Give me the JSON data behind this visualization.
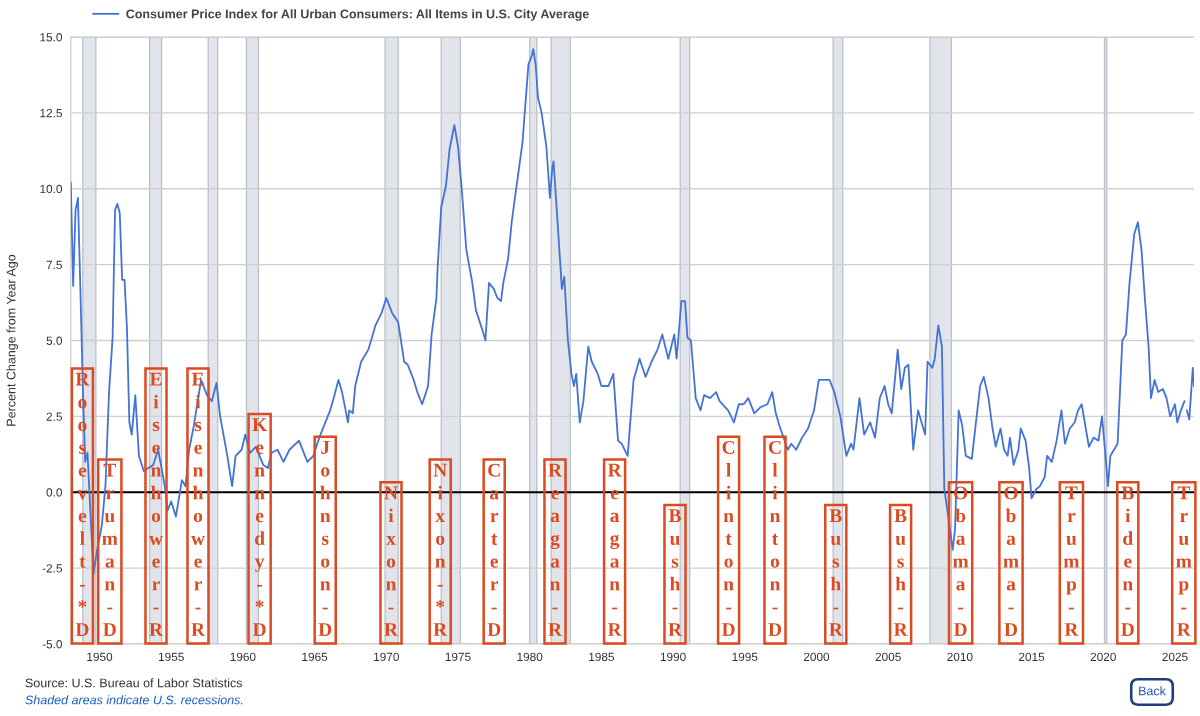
{
  "chart_data": {
    "type": "line",
    "ylabel": "Percent Change from Year Ago",
    "x": [
      "1948-01",
      "1948-03",
      "1948-05",
      "1948-07",
      "1948-09",
      "1948-11",
      "1949-01",
      "1949-03",
      "1949-08",
      "1949-11",
      "1950-03",
      "1950-06",
      "1950-09",
      "1950-12",
      "1951-02",
      "1951-04",
      "1951-06",
      "1951-08",
      "1951-10",
      "1951-12",
      "1952-02",
      "1952-04",
      "1952-07",
      "1952-10",
      "1953-02",
      "1953-06",
      "1953-10",
      "1954-02",
      "1954-05",
      "1954-08",
      "1954-10",
      "1955-01",
      "1955-05",
      "1955-10",
      "1956-01",
      "1956-04",
      "1956-08",
      "1957-02",
      "1957-07",
      "1957-11",
      "1958-03",
      "1958-06",
      "1958-12",
      "1959-04",
      "1959-07",
      "1959-12",
      "1960-03",
      "1960-07",
      "1960-12",
      "1961-03",
      "1961-06",
      "1961-10",
      "1962-01",
      "1962-06",
      "1962-11",
      "1963-04",
      "1963-12",
      "1964-07",
      "1964-12",
      "1965-05",
      "1966-02",
      "1966-05",
      "1966-09",
      "1966-12",
      "1967-05",
      "1967-06",
      "1967-09",
      "1967-11",
      "1968-04",
      "1968-10",
      "1969-01",
      "1969-04",
      "1969-09",
      "1970-01",
      "1970-06",
      "1970-11",
      "1971-04",
      "1971-07",
      "1971-12",
      "1972-03",
      "1972-07",
      "1972-12",
      "1973-03",
      "1973-07",
      "1973-08",
      "1973-11",
      "1974-03",
      "1974-06",
      "1974-10",
      "1975-01",
      "1975-04",
      "1975-08",
      "1976-01",
      "1976-04",
      "1976-09",
      "1976-12",
      "1977-03",
      "1977-07",
      "1977-10",
      "1978-01",
      "1978-03",
      "1978-07",
      "1978-10",
      "1979-01",
      "1979-07",
      "1979-12",
      "1980-03",
      "1980-04",
      "1980-06",
      "1980-08",
      "1980-11",
      "1981-03",
      "1981-06",
      "1981-08",
      "1981-09",
      "1982-01",
      "1982-04",
      "1982-06",
      "1982-09",
      "1982-12",
      "1983-02",
      "1983-04",
      "1983-07",
      "1983-10",
      "1984-02",
      "1984-05",
      "1984-10",
      "1985-01",
      "1985-07",
      "1985-11",
      "1986-03",
      "1986-06",
      "1986-11",
      "1987-04",
      "1987-09",
      "1988-02",
      "1988-07",
      "1988-12",
      "1989-04",
      "1989-09",
      "1990-02",
      "1990-04",
      "1990-08",
      "1990-11",
      "1991-01",
      "1991-04",
      "1991-08",
      "1991-12",
      "1992-03",
      "1992-08",
      "1993-01",
      "1993-04",
      "1993-11",
      "1994-04",
      "1994-08",
      "1994-12",
      "1995-04",
      "1995-09",
      "1996-02",
      "1996-08",
      "1996-12",
      "1997-03",
      "1997-06",
      "1998-01",
      "1998-04",
      "1998-08",
      "1999-01",
      "1999-06",
      "1999-11",
      "2000-03",
      "2000-06",
      "2000-12",
      "2001-04",
      "2001-09",
      "2002-02",
      "2002-06",
      "2002-08",
      "2003-01",
      "2003-05",
      "2003-10",
      "2004-02",
      "2004-06",
      "2004-10",
      "2005-01",
      "2005-04",
      "2005-09",
      "2005-12",
      "2006-03",
      "2006-06",
      "2006-10",
      "2007-02",
      "2007-05",
      "2007-08",
      "2007-10",
      "2008-02",
      "2008-04",
      "2008-07",
      "2008-10",
      "2008-12",
      "2009-03",
      "2009-07",
      "2009-09",
      "2009-12",
      "2010-03",
      "2010-06",
      "2010-11",
      "2011-06",
      "2011-09",
      "2012-01",
      "2012-04",
      "2012-07",
      "2012-11",
      "2013-02",
      "2013-05",
      "2013-07",
      "2013-10",
      "2014-02",
      "2014-04",
      "2014-08",
      "2014-11",
      "2015-01",
      "2015-05",
      "2015-08",
      "2015-12",
      "2016-02",
      "2016-06",
      "2016-10",
      "2017-02",
      "2017-05",
      "2017-09",
      "2018-01",
      "2018-04",
      "2018-07",
      "2018-10",
      "2019-01",
      "2019-05",
      "2019-09",
      "2019-12",
      "2020-02",
      "2020-05",
      "2020-07",
      "2020-10",
      "2021-01",
      "2021-05",
      "2021-08",
      "2021-11",
      "2022-03",
      "2022-06",
      "2022-09",
      "2022-12",
      "2023-03",
      "2023-05",
      "2023-08",
      "2023-11",
      "2024-03",
      "2024-06",
      "2024-09",
      "2025-01",
      "2025-03",
      "2025-06",
      "2025-09",
      "2025-10",
      "2025-11",
      "2026-01",
      "2026-04",
      "2026-05"
    ],
    "series": [
      {
        "name": "Consumer Price Index for All Urban Consumers: All Items in U.S. City Average",
        "color": "#4473d6",
        "values": [
          10.2,
          6.8,
          9.3,
          9.7,
          6.7,
          3.5,
          1.0,
          1.3,
          -2.7,
          -1.9,
          -1.1,
          0.2,
          3.3,
          5.1,
          9.3,
          9.5,
          9.2,
          7.0,
          7.0,
          5.4,
          2.3,
          1.9,
          3.2,
          1.2,
          0.7,
          0.8,
          0.9,
          1.4,
          0.8,
          0.1,
          -0.6,
          -0.3,
          -0.8,
          0.4,
          0.2,
          1.4,
          2.2,
          3.7,
          3.2,
          3.0,
          3.6,
          2.5,
          1.2,
          0.2,
          1.2,
          1.4,
          1.9,
          1.3,
          1.5,
          1.2,
          0.9,
          0.8,
          1.3,
          1.4,
          1.0,
          1.4,
          1.7,
          1.0,
          1.2,
          1.8,
          2.7,
          3.1,
          3.7,
          3.3,
          2.3,
          2.7,
          2.6,
          3.5,
          4.3,
          4.7,
          5.1,
          5.5,
          5.9,
          6.4,
          5.9,
          5.6,
          4.3,
          4.2,
          3.7,
          3.3,
          2.9,
          3.5,
          5.2,
          6.4,
          7.4,
          9.4,
          10.1,
          11.3,
          12.1,
          11.4,
          10.1,
          8.0,
          6.9,
          6.0,
          5.4,
          5.0,
          6.9,
          6.7,
          6.4,
          6.3,
          6.9,
          7.7,
          8.9,
          9.8,
          11.5,
          14.1,
          14.4,
          14.6,
          14.1,
          13.0,
          12.5,
          11.4,
          9.7,
          10.7,
          10.9,
          8.5,
          6.7,
          7.1,
          5.0,
          3.9,
          3.5,
          3.9,
          2.3,
          3.0,
          4.8,
          4.3,
          3.9,
          3.5,
          3.5,
          3.9,
          1.7,
          1.6,
          1.2,
          3.7,
          4.4,
          3.8,
          4.3,
          4.7,
          5.2,
          4.4,
          5.2,
          4.4,
          6.3,
          6.3,
          5.1,
          5.0,
          3.1,
          2.7,
          3.2,
          3.1,
          3.3,
          3.0,
          2.7,
          2.3,
          2.9,
          2.9,
          3.1,
          2.6,
          2.8,
          2.9,
          3.3,
          2.6,
          2.2,
          1.4,
          1.6,
          1.4,
          1.8,
          2.1,
          2.7,
          3.7,
          3.7,
          3.7,
          3.3,
          2.5,
          1.2,
          1.6,
          1.4,
          3.1,
          1.9,
          2.3,
          1.8,
          3.1,
          3.5,
          2.9,
          2.6,
          4.7,
          3.4,
          4.1,
          4.2,
          1.4,
          2.7,
          2.3,
          1.9,
          4.3,
          4.1,
          4.4,
          5.5,
          4.8,
          0.1,
          -0.7,
          -1.9,
          -1.2,
          2.7,
          2.2,
          1.2,
          1.1,
          3.5,
          3.8,
          3.1,
          2.2,
          1.5,
          2.1,
          1.4,
          1.2,
          1.8,
          0.9,
          1.4,
          2.1,
          1.7,
          0.8,
          -0.2,
          0.1,
          0.2,
          0.5,
          1.2,
          1.0,
          1.7,
          2.7,
          1.6,
          2.1,
          2.3,
          2.7,
          2.9,
          2.2,
          1.5,
          1.8,
          1.7,
          2.5,
          1.6,
          0.2,
          1.2,
          1.4,
          1.6,
          5.0,
          5.2,
          6.9,
          8.5,
          8.9,
          8.0,
          6.3,
          4.8,
          3.1,
          3.7,
          3.3,
          3.4,
          3.1,
          2.5,
          2.9,
          2.3,
          2.7,
          3.0,
          null,
          2.7,
          2.4,
          4.1,
          3.5
        ]
      }
    ],
    "xlim": [
      "1948-01",
      "2026-05"
    ],
    "ylim": [
      -5,
      15
    ],
    "xticks": [
      "1950",
      "1955",
      "1960",
      "1965",
      "1970",
      "1975",
      "1980",
      "1985",
      "1990",
      "1995",
      "2000",
      "2005",
      "2010",
      "2015",
      "2020",
      "2025"
    ],
    "yticks": [
      {
        "value": -5,
        "label": "-5.0"
      },
      {
        "value": -2.5,
        "label": "-2.5"
      },
      {
        "value": 0,
        "label": "0.0"
      },
      {
        "value": 2.5,
        "label": "2.5"
      },
      {
        "value": 5,
        "label": "5.0"
      },
      {
        "value": 7.5,
        "label": "7.5"
      },
      {
        "value": 10,
        "label": "10.0"
      },
      {
        "value": 12.5,
        "label": "12.5"
      },
      {
        "value": 15,
        "label": "15.0"
      }
    ],
    "grid": "y",
    "legend": "top left",
    "ref_lines": [
      {
        "axis": "y",
        "value": 0,
        "color": "#000000"
      }
    ],
    "bands": [
      {
        "axis": "x",
        "from": "1948-11",
        "to": "1949-10",
        "color": "#e1e4ea"
      },
      {
        "axis": "x",
        "from": "1953-07",
        "to": "1954-05",
        "color": "#e1e4ea"
      },
      {
        "axis": "x",
        "from": "1957-08",
        "to": "1958-04",
        "color": "#e1e4ea"
      },
      {
        "axis": "x",
        "from": "1960-04",
        "to": "1961-02",
        "color": "#e1e4ea"
      },
      {
        "axis": "x",
        "from": "1969-12",
        "to": "1970-11",
        "color": "#e1e4ea"
      },
      {
        "axis": "x",
        "from": "1973-11",
        "to": "1975-03",
        "color": "#e1e4ea"
      },
      {
        "axis": "x",
        "from": "1980-01",
        "to": "1980-07",
        "color": "#e1e4ea"
      },
      {
        "axis": "x",
        "from": "1981-07",
        "to": "1982-11",
        "color": "#e1e4ea"
      },
      {
        "axis": "x",
        "from": "1990-07",
        "to": "1991-03",
        "color": "#e1e4ea"
      },
      {
        "axis": "x",
        "from": "2001-03",
        "to": "2001-11",
        "color": "#e1e4ea"
      },
      {
        "axis": "x",
        "from": "2007-12",
        "to": "2009-06",
        "color": "#e1e4ea"
      },
      {
        "axis": "x",
        "from": "2020-02",
        "to": "2020-04",
        "color": "#e1e4ea"
      }
    ],
    "annotations": [
      "Roosevelt-*D",
      "Truman-D",
      "Eisenhower-R",
      "Eisenhower-R",
      "Kennedy-*D",
      "Johnson-D",
      "Nixon-R",
      "Nixon-*R",
      "Carter-D",
      "Reagan-R",
      "Reagan-R",
      "Bush-R",
      "Clinton-D",
      "Clinton-D",
      "Bush-R",
      "Bush-R",
      "Obama-D",
      "Obama-D",
      "Trump-R",
      "Biden-D",
      "Trump-R",
      "Source: U.S. Bureau of Labor Statistics",
      "Shaded areas indicate U.S. recessions.",
      "Back"
    ]
  }
}
